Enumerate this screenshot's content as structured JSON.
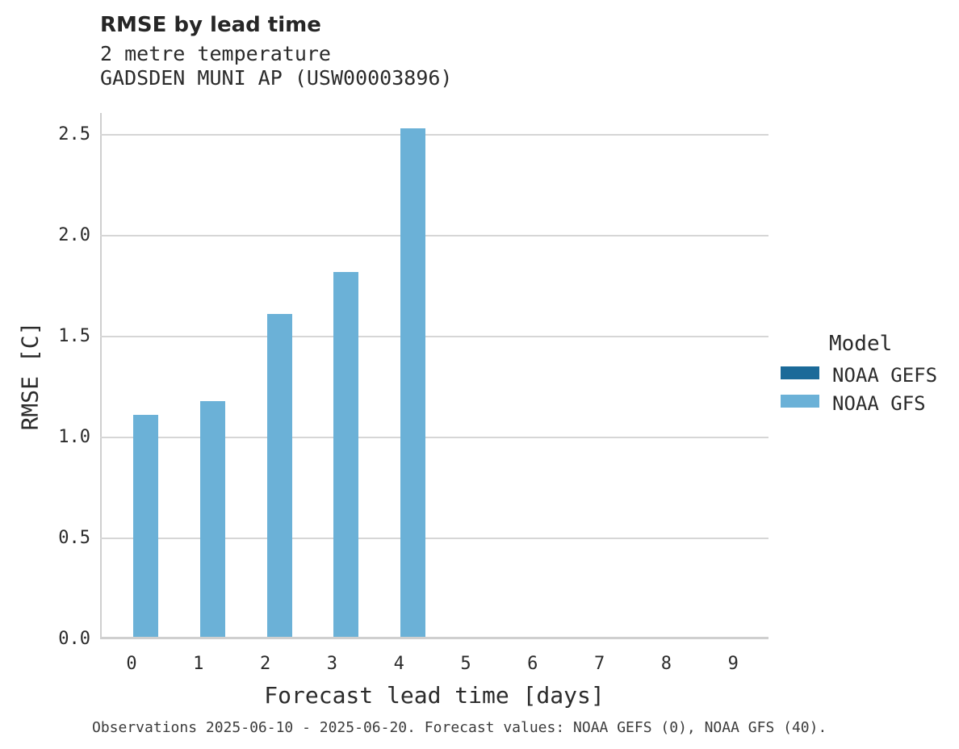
{
  "header": {
    "title": "RMSE by lead time",
    "subtitle_line1": "2 metre temperature",
    "subtitle_line2": "GADSDEN MUNI AP (USW00003896)"
  },
  "legend": {
    "title": "Model",
    "items": [
      {
        "label": "NOAA GEFS",
        "color": "#1b6a99"
      },
      {
        "label": "NOAA GFS",
        "color": "#6bb1d7"
      }
    ]
  },
  "footer": {
    "text": "Observations 2025-06-10 - 2025-06-20. Forecast values: NOAA GEFS (0), NOAA GFS (40)."
  },
  "colors": {
    "gridline": "#d6d6d6",
    "axis_domain": "#cfcfcf",
    "noaa_gefs": "#1b6a99",
    "noaa_gfs": "#6bb1d7"
  },
  "chart_data": {
    "type": "bar",
    "title": "RMSE by lead time",
    "subtitle": [
      "2 metre temperature",
      "GADSDEN MUNI AP (USW00003896)"
    ],
    "xlabel": "Forecast lead time [days]",
    "ylabel": "RMSE [C]",
    "categories": [
      0,
      1,
      2,
      3,
      4,
      5,
      6,
      7,
      8,
      9
    ],
    "series": [
      {
        "name": "NOAA GEFS",
        "color": "#1b6a99",
        "values": [
          null,
          null,
          null,
          null,
          null,
          null,
          null,
          null,
          null,
          null
        ]
      },
      {
        "name": "NOAA GFS",
        "color": "#6bb1d7",
        "values": [
          1.1,
          1.17,
          1.6,
          1.81,
          2.52,
          null,
          null,
          null,
          null,
          null
        ]
      }
    ],
    "ylim": [
      0,
      2.6
    ],
    "yticks": [
      0.0,
      0.5,
      1.0,
      1.5,
      2.0,
      2.5
    ],
    "grid": true,
    "legend_position": "right",
    "note": "Observations 2025-06-10 - 2025-06-20. Forecast values: NOAA GEFS (0), NOAA GFS (40)."
  }
}
